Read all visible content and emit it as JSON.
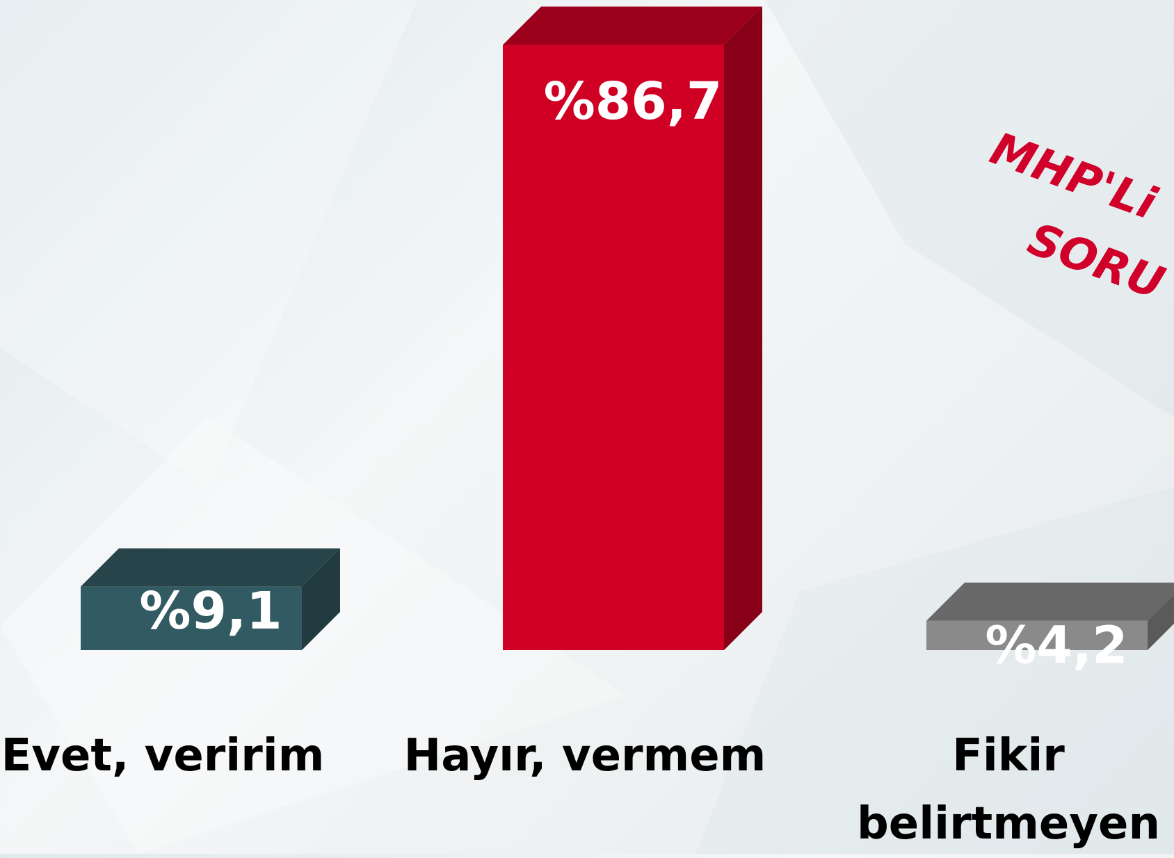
{
  "chart_data": {
    "type": "bar3d",
    "categories": [
      "Evet, veririm",
      "Hayır, vermem",
      "Fikir belirtmeyen"
    ],
    "values": [
      9.1,
      86.7,
      4.2
    ],
    "value_labels": [
      "%9,1",
      "%86,7",
      "%4,2"
    ],
    "colors": [
      "#325a62",
      "#d00024",
      "#8a8a8a"
    ],
    "annotations": [
      "MHP'Li",
      "SORU"
    ]
  }
}
